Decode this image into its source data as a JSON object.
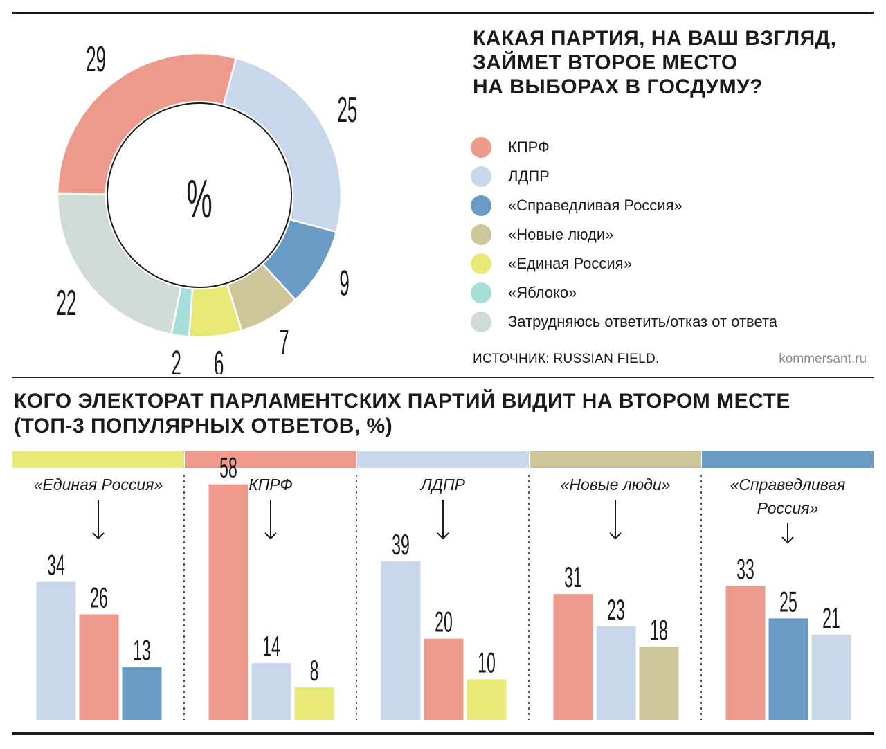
{
  "colors": {
    "kprf": "#ed9a8d",
    "ldpr": "#c8d8ea",
    "sr": "#6a9bc4",
    "nl": "#cfc59b",
    "er": "#e8e877",
    "yabloko": "#a6dedc",
    "undecided": "#d1dbd5"
  },
  "donut": {
    "title": "КАКАЯ ПАРТИЯ, НА ВАШ ВЗГЛЯД,\nЗАЙМЕТ ВТОРОЕ МЕСТО\nНА ВЫБОРАХ В ГОСДУМУ?",
    "center_label": "%",
    "source": "ИСТОЧНИК: RUSSIAN FIELD.",
    "brand": "kommersant.ru"
  },
  "bars": {
    "title": "КОГО ЭЛЕКТОРАТ ПАРЛАМЕНТСКИХ ПАРТИЙ ВИДИТ НА ВТОРОМ МЕСТЕ\n(ТОП-3 ПОПУЛЯРНЫХ ОТВЕТОВ, %)"
  },
  "chart_data": [
    {
      "type": "pie",
      "title": "КАКАЯ ПАРТИЯ, НА ВАШ ВЗГЛЯД, ЗАЙМЕТ ВТОРОЕ МЕСТО НА ВЫБОРАХ В ГОСДУМУ?",
      "unit": "%",
      "slices": [
        {
          "key": "ldpr",
          "label": "ЛДПР",
          "value": 25,
          "color": "#c8d8ea"
        },
        {
          "key": "sr",
          "label": "«Справедливая Россия»",
          "value": 9,
          "color": "#6a9bc4"
        },
        {
          "key": "nl",
          "label": "«Новые люди»",
          "value": 7,
          "color": "#cfc59b"
        },
        {
          "key": "er",
          "label": "«Единая Россия»",
          "value": 6,
          "color": "#e8e877"
        },
        {
          "key": "yabloko",
          "label": "«Яблоко»",
          "value": 2,
          "color": "#a6dedc"
        },
        {
          "key": "undecided",
          "label": "Затрудняюсь ответить/отказ от ответа",
          "value": 22,
          "color": "#d1dbd5"
        },
        {
          "key": "kprf",
          "label": "КПРФ",
          "value": 29,
          "color": "#ed9a8d"
        }
      ],
      "legend": [
        {
          "label": "КПРФ",
          "color": "#ed9a8d"
        },
        {
          "label": "ЛДПР",
          "color": "#c8d8ea"
        },
        {
          "label": "«Справедливая Россия»",
          "color": "#6a9bc4"
        },
        {
          "label": "«Новые люди»",
          "color": "#cfc59b"
        },
        {
          "label": "«Единая Россия»",
          "color": "#e8e877"
        },
        {
          "label": "«Яблоко»",
          "color": "#a6dedc"
        },
        {
          "label": "Затрудняюсь ответить/отказ от ответа",
          "color": "#d1dbd5"
        }
      ]
    },
    {
      "type": "bar",
      "title": "КОГО ЭЛЕКТОРАТ ПАРЛАМЕНТСКИХ ПАРТИЙ ВИДИТ НА ВТОРОМ МЕСТЕ (ТОП-3 ПОПУЛЯРНЫХ ОТВЕТОВ, %)",
      "unit": "%",
      "ylim": [
        0,
        60
      ],
      "panels": [
        {
          "label_lines": [
            "«Единая Россия»"
          ],
          "color": "#e8e877",
          "bars": [
            {
              "value": 34,
              "color": "#c8d8ea"
            },
            {
              "value": 26,
              "color": "#ed9a8d"
            },
            {
              "value": 13,
              "color": "#6a9bc4"
            }
          ]
        },
        {
          "label_lines": [
            "КПРФ"
          ],
          "color": "#ed9a8d",
          "bars": [
            {
              "value": 58,
              "color": "#ed9a8d"
            },
            {
              "value": 14,
              "color": "#c8d8ea"
            },
            {
              "value": 8,
              "color": "#e8e877"
            }
          ]
        },
        {
          "label_lines": [
            "ЛДПР"
          ],
          "color": "#c8d8ea",
          "bars": [
            {
              "value": 39,
              "color": "#c8d8ea"
            },
            {
              "value": 20,
              "color": "#ed9a8d"
            },
            {
              "value": 10,
              "color": "#e8e877"
            }
          ]
        },
        {
          "label_lines": [
            "«Новые люди»"
          ],
          "color": "#cfc59b",
          "bars": [
            {
              "value": 31,
              "color": "#ed9a8d"
            },
            {
              "value": 23,
              "color": "#c8d8ea"
            },
            {
              "value": 18,
              "color": "#cfc59b"
            }
          ]
        },
        {
          "label_lines": [
            "«Справедливая",
            "Россия»"
          ],
          "color": "#6a9bc4",
          "bars": [
            {
              "value": 33,
              "color": "#ed9a8d"
            },
            {
              "value": 25,
              "color": "#6a9bc4"
            },
            {
              "value": 21,
              "color": "#c8d8ea"
            }
          ]
        }
      ]
    }
  ]
}
